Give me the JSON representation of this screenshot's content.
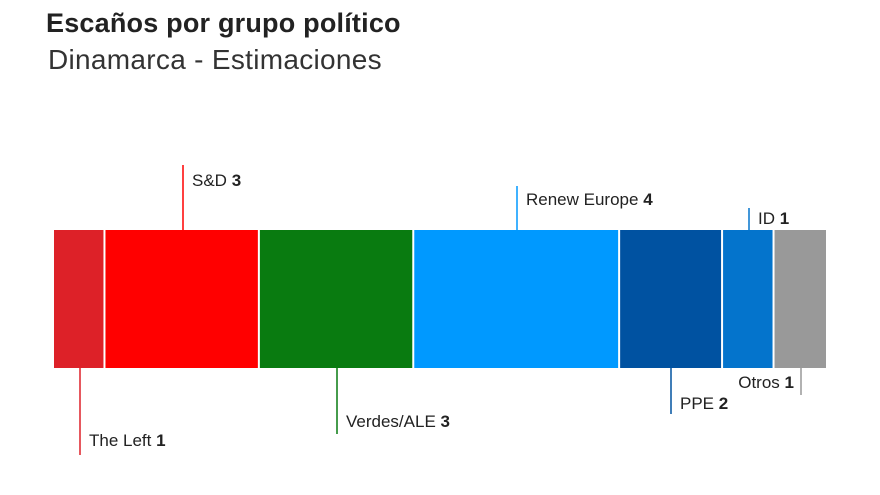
{
  "title": "Escaños por grupo político",
  "subtitle": "Dinamarca - Estimaciones",
  "chart_data": {
    "type": "bar",
    "orientation": "horizontal-stacked",
    "total": 15,
    "segments": [
      {
        "name": "The Left",
        "value": 1,
        "color": "#dd2128",
        "label_position": "below"
      },
      {
        "name": "S&D",
        "value": 3,
        "color": "#ff0000",
        "label_position": "above"
      },
      {
        "name": "Verdes/ALE",
        "value": 3,
        "color": "#097b10",
        "label_position": "below"
      },
      {
        "name": "Renew Europe",
        "value": 4,
        "color": "#0099ff",
        "label_position": "above"
      },
      {
        "name": "PPE",
        "value": 2,
        "color": "#0052a1",
        "label_position": "below"
      },
      {
        "name": "ID",
        "value": 1,
        "color": "#0474cc",
        "label_position": "above"
      },
      {
        "name": "Otros",
        "value": 1,
        "color": "#999999",
        "label_position": "below"
      }
    ]
  }
}
